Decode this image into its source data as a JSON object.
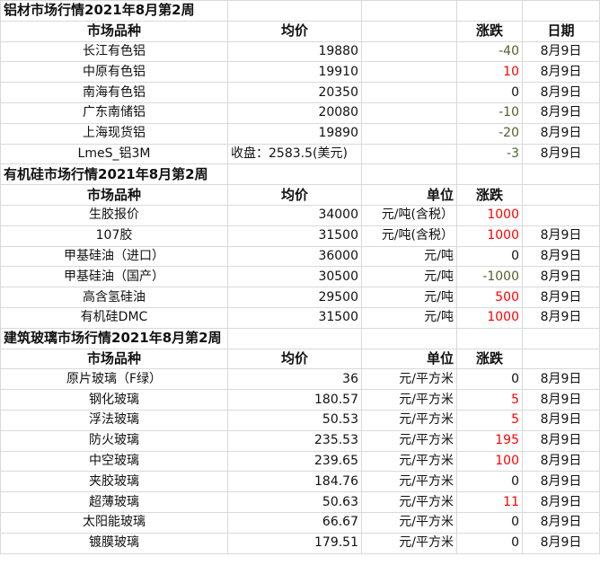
{
  "colors": {
    "up": "#ff0000",
    "down": "#4f6228"
  },
  "sections": [
    {
      "title": "铝材市场行情2021年8月第2周",
      "headers": [
        "市场品种",
        "均价",
        "",
        "涨跌",
        "日期"
      ],
      "rows": [
        {
          "name": "长江有色铝",
          "price": "19880",
          "unit": "",
          "change": "-40",
          "date": "8月9日"
        },
        {
          "name": "中原有色铝",
          "price": "19910",
          "unit": "",
          "change": "10",
          "date": "8月9日"
        },
        {
          "name": "南海有色铝",
          "price": "20350",
          "unit": "",
          "change": "0",
          "date": "8月9日"
        },
        {
          "name": "广东南储铝",
          "price": "20080",
          "unit": "",
          "change": "-10",
          "date": "8月9日"
        },
        {
          "name": "上海现货铝",
          "price": "19890",
          "unit": "",
          "change": "-20",
          "date": "8月9日"
        },
        {
          "name": "LmeS_铝3M",
          "price": "收盘：2583.5(美元)",
          "unit": "",
          "change": "-3",
          "date": "8月9日"
        }
      ]
    },
    {
      "title": "有机硅市场行情2021年8月第2周",
      "headers": [
        "市场品种",
        "均价",
        "单位",
        "涨跌",
        ""
      ],
      "rows": [
        {
          "name": "生胶报价",
          "price": "34000",
          "unit": "元/吨(含税）",
          "change": "1000",
          "date": ""
        },
        {
          "name": "107胶",
          "price": "31500",
          "unit": "元/吨(含税）",
          "change": "1000",
          "date": "8月9日"
        },
        {
          "name": "甲基硅油（进口）",
          "price": "36000",
          "unit": "元/吨",
          "change": "0",
          "date": "8月9日"
        },
        {
          "name": "甲基硅油（国产）",
          "price": "30500",
          "unit": "元/吨",
          "change": "-1000",
          "date": "8月9日"
        },
        {
          "name": "高含氢硅油",
          "price": "29500",
          "unit": "元/吨",
          "change": "500",
          "date": "8月9日"
        },
        {
          "name": "有机硅DMC",
          "price": "31500",
          "unit": "元/吨",
          "change": "1000",
          "date": "8月9日"
        }
      ]
    },
    {
      "title": "建筑玻璃市场行情2021年8月第2周",
      "headers": [
        "市场品种",
        "均价",
        "单位",
        "涨跌",
        ""
      ],
      "rows": [
        {
          "name": "原片玻璃（F绿）",
          "price": "36",
          "unit": "元/平方米",
          "change": "0",
          "date": "8月9日"
        },
        {
          "name": "钢化玻璃",
          "price": "180.57",
          "unit": "元/平方米",
          "change": "5",
          "date": "8月9日"
        },
        {
          "name": "浮法玻璃",
          "price": "50.53",
          "unit": "元/平方米",
          "change": "5",
          "date": "8月9日"
        },
        {
          "name": "防火玻璃",
          "price": "235.53",
          "unit": "元/平方米",
          "change": "195",
          "date": "8月9日"
        },
        {
          "name": "中空玻璃",
          "price": "239.65",
          "unit": "元/平方米",
          "change": "100",
          "date": "8月9日"
        },
        {
          "name": "夹胶玻璃",
          "price": "184.76",
          "unit": "元/平方米",
          "change": "0",
          "date": "8月9日"
        },
        {
          "name": "超薄玻璃",
          "price": "50.63",
          "unit": "元/平方米",
          "change": "11",
          "date": "8月9日"
        },
        {
          "name": "太阳能玻璃",
          "price": "66.67",
          "unit": "元/平方米",
          "change": "0",
          "date": "8月9日"
        },
        {
          "name": "镀膜玻璃",
          "price": "179.51",
          "unit": "元/平方米",
          "change": "0",
          "date": "8月9日"
        }
      ]
    }
  ]
}
